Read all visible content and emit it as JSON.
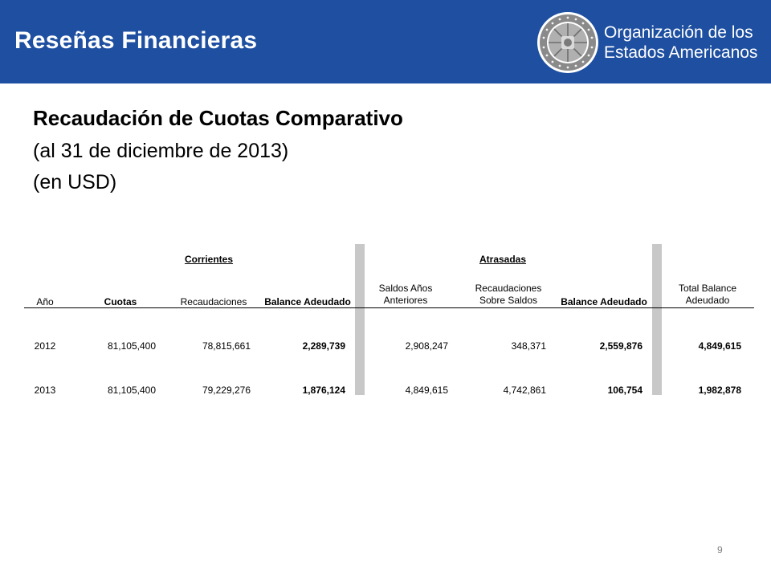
{
  "header": {
    "title": "Reseñas Financieras",
    "org_line1": "Organización de los",
    "org_line2": "Estados Americanos",
    "brand_color": "#1e4fa0",
    "logo": "oas-seal-icon"
  },
  "slide": {
    "title": "Recaudación de Cuotas Comparativo",
    "subtitle1": "(al 31 de diciembre de 2013)",
    "subtitle2": "(en USD)"
  },
  "table": {
    "groups": {
      "corrientes": "Corrientes",
      "atrasadas": "Atrasadas"
    },
    "columns": {
      "anio": "Año",
      "cuotas": "Cuotas",
      "recaudaciones": "Recaudaciones",
      "balance_adeudado": "Balance Adeudado",
      "saldos_anos_anteriores": "Saldos Años Anteriores",
      "recaudaciones_sobre_saldos": "Recaudaciones Sobre Saldos",
      "balance_adeudado_2": "Balance Adeudado",
      "total_balance_adeudado": "Total Balance Adeudado"
    },
    "rows": [
      {
        "anio": "2012",
        "cuotas": "81,105,400",
        "recaudaciones": "78,815,661",
        "balance_adeudado": "2,289,739",
        "saldos_anos_anteriores": "2,908,247",
        "recaudaciones_sobre_saldos": "348,371",
        "balance_adeudado_2": "2,559,876",
        "total_balance_adeudado": "4,849,615"
      },
      {
        "anio": "2013",
        "cuotas": "81,105,400",
        "recaudaciones": "79,229,276",
        "balance_adeudado": "1,876,124",
        "saldos_anos_anteriores": "4,849,615",
        "recaudaciones_sobre_saldos": "4,742,861",
        "balance_adeudado_2": "106,754",
        "total_balance_adeudado": "1,982,878"
      }
    ]
  },
  "footer": {
    "page_number": "9"
  }
}
